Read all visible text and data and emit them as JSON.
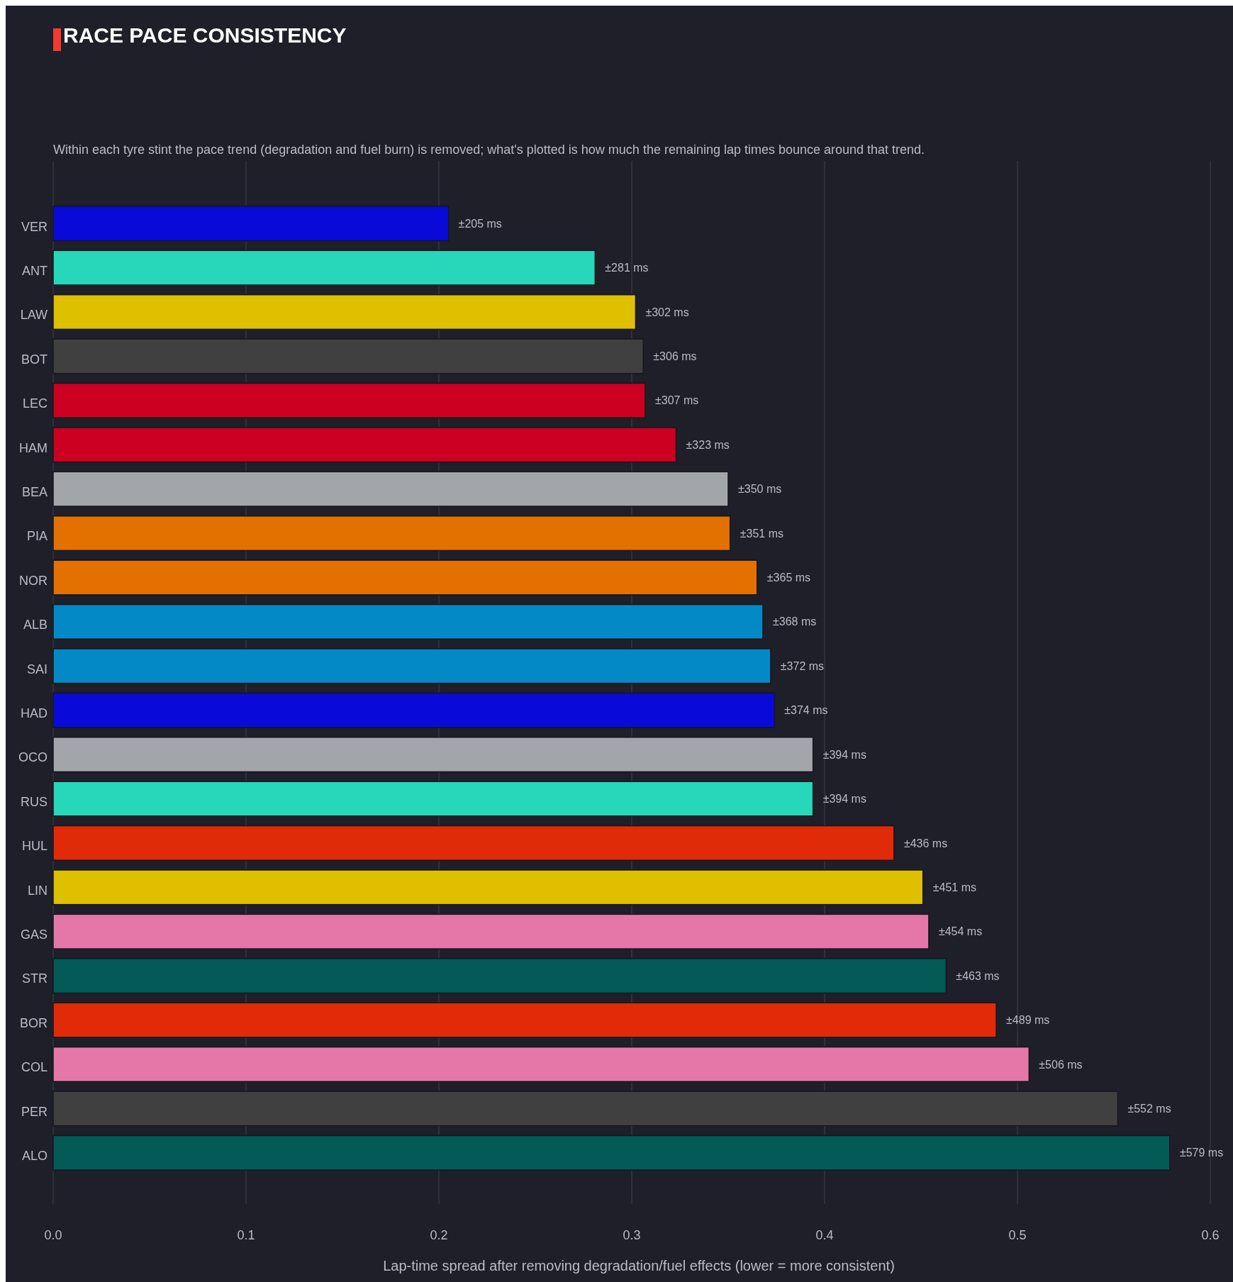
{
  "chart_data": {
    "type": "bar",
    "orientation": "horizontal",
    "title": "RACE PACE CONSISTENCY",
    "subtitle": "Within each tyre stint the pace trend (degradation and fuel burn) is removed; what's plotted is how much the remaining lap times bounce around that trend.",
    "xlabel": "Lap-time spread after removing degradation/fuel effects  (lower = more consistent)",
    "categories": [
      "VER",
      "ANT",
      "LAW",
      "BOT",
      "LEC",
      "HAM",
      "BEA",
      "PIA",
      "NOR",
      "ALB",
      "SAI",
      "HAD",
      "OCO",
      "RUS",
      "HUL",
      "LIN",
      "GAS",
      "STR",
      "BOR",
      "COL",
      "PER",
      "ALO"
    ],
    "values": [
      0.205,
      0.281,
      0.302,
      0.306,
      0.307,
      0.323,
      0.35,
      0.351,
      0.365,
      0.368,
      0.372,
      0.374,
      0.394,
      0.394,
      0.436,
      0.451,
      0.454,
      0.463,
      0.489,
      0.506,
      0.552,
      0.579
    ],
    "annotations": [
      {
        "text": "±205 ms",
        "x": 0.205,
        "y": "VER"
      },
      {
        "text": "±281 ms",
        "x": 0.281,
        "y": "ANT"
      },
      {
        "text": "±302 ms",
        "x": 0.302,
        "y": "LAW"
      },
      {
        "text": "±306 ms",
        "x": 0.306,
        "y": "BOT"
      },
      {
        "text": "±307 ms",
        "x": 0.307,
        "y": "LEC"
      },
      {
        "text": "±323 ms",
        "x": 0.323,
        "y": "HAM"
      },
      {
        "text": "±350 ms",
        "x": 0.35,
        "y": "BEA"
      },
      {
        "text": "±351 ms",
        "x": 0.351,
        "y": "PIA"
      },
      {
        "text": "±365 ms",
        "x": 0.365,
        "y": "NOR"
      },
      {
        "text": "±368 ms",
        "x": 0.368,
        "y": "ALB"
      },
      {
        "text": "±372 ms",
        "x": 0.372,
        "y": "SAI"
      },
      {
        "text": "±374 ms",
        "x": 0.374,
        "y": "HAD"
      },
      {
        "text": "±394 ms",
        "x": 0.394,
        "y": "OCO"
      },
      {
        "text": "±394 ms",
        "x": 0.394,
        "y": "RUS"
      },
      {
        "text": "±436 ms",
        "x": 0.436,
        "y": "HUL"
      },
      {
        "text": "±451 ms",
        "x": 0.451,
        "y": "LIN"
      },
      {
        "text": "±454 ms",
        "x": 0.454,
        "y": "GAS"
      },
      {
        "text": "±463 ms",
        "x": 0.463,
        "y": "STR"
      },
      {
        "text": "±489 ms",
        "x": 0.489,
        "y": "BOR"
      },
      {
        "text": "±506 ms",
        "x": 0.506,
        "y": "COL"
      },
      {
        "text": "±552 ms",
        "x": 0.552,
        "y": "PER"
      },
      {
        "text": "±579 ms",
        "x": 0.579,
        "y": "ALO"
      }
    ],
    "colors": [
      "#0a0ad8",
      "#26d7b9",
      "#dfc000",
      "#404040",
      "#cc0020",
      "#cc0020",
      "#a2a5aa",
      "#e37100",
      "#e37100",
      "#038ac6",
      "#038ac6",
      "#0a0ad8",
      "#a2a5aa",
      "#26d7b9",
      "#e12a08",
      "#dfc000",
      "#e577a8",
      "#035a57",
      "#e12a08",
      "#e577a8",
      "#404040",
      "#035a57"
    ],
    "xlim": [
      0,
      0.6
    ],
    "xticks": [
      {
        "value": 0,
        "label": "0.0"
      },
      0.1,
      0.2,
      0.3,
      0.4,
      0.5,
      0.6
    ],
    "grid": "x"
  }
}
